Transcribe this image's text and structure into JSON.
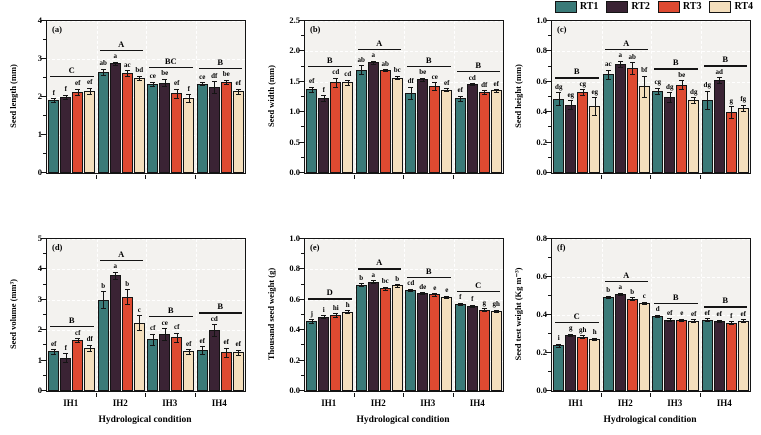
{
  "legend": {
    "items": [
      {
        "label": "RT1",
        "color": "#3A7A78"
      },
      {
        "label": "RT2",
        "color": "#3A2334"
      },
      {
        "label": "RT3",
        "color": "#DE4A31"
      },
      {
        "label": "RT4",
        "color": "#F4DFBD"
      }
    ]
  },
  "xlabel": "Hydrological condition",
  "categories": [
    "IH1",
    "IH2",
    "IH3",
    "IH4"
  ],
  "colors": {
    "bar_border": "#141414",
    "plot_background": "#f3f2ef",
    "gridline": "#ffffff"
  },
  "chart_data": {
    "type": "bar",
    "legend_position": "top-right",
    "grid": true,
    "panels": [
      {
        "panel_label": "(a)",
        "ylabel": "Seed length (mm)",
        "ylim": [
          0,
          4
        ],
        "yticks": [
          "0",
          "1",
          "2",
          "3",
          "4"
        ],
        "group_letters": [
          "C",
          "A",
          "BC",
          "B"
        ],
        "show_x_labels": false,
        "series": [
          {
            "name": "RT1",
            "values": [
              1.92,
              2.66,
              2.35,
              2.35
            ],
            "errors": [
              0.05,
              0.08,
              0.05,
              0.04
            ],
            "letters": [
              "f",
              "ab",
              "ce",
              "ce"
            ]
          },
          {
            "name": "RT2",
            "values": [
              2.01,
              2.89,
              2.38,
              2.26
            ],
            "errors": [
              0.05,
              0.04,
              0.1,
              0.15
            ],
            "letters": [
              "f",
              "a",
              "be",
              "df"
            ]
          },
          {
            "name": "RT3",
            "values": [
              2.14,
              2.63,
              2.1,
              2.4
            ],
            "errors": [
              0.08,
              0.07,
              0.12,
              0.06
            ],
            "letters": [
              "ef",
              "ac",
              "ef",
              "be"
            ]
          },
          {
            "name": "RT4",
            "values": [
              2.16,
              2.5,
              1.97,
              2.15
            ],
            "errors": [
              0.08,
              0.06,
              0.1,
              0.07
            ],
            "letters": [
              "ef",
              "bd",
              "f",
              "ef"
            ]
          }
        ]
      },
      {
        "panel_label": "(b)",
        "ylabel": "Seed width (mm)",
        "ylim": [
          0,
          2.5
        ],
        "yticks": [
          "0.0",
          "0.5",
          "1.0",
          "1.5",
          "2.0",
          "2.5"
        ],
        "group_letters": [
          "B",
          "A",
          "B",
          "B"
        ],
        "show_x_labels": false,
        "series": [
          {
            "name": "RT1",
            "values": [
              1.38,
              1.7,
              1.32,
              1.23
            ],
            "errors": [
              0.04,
              0.07,
              0.1,
              0.04
            ],
            "letters": [
              "ef",
              "ab",
              "df",
              "ef"
            ]
          },
          {
            "name": "RT2",
            "values": [
              1.23,
              1.82,
              1.54,
              1.46
            ],
            "errors": [
              0.05,
              0.03,
              0.03,
              0.02
            ],
            "letters": [
              "f",
              "a",
              "be",
              "cd"
            ]
          },
          {
            "name": "RT3",
            "values": [
              1.49,
              1.69,
              1.43,
              1.33
            ],
            "errors": [
              0.08,
              0.02,
              0.06,
              0.03
            ],
            "letters": [
              "cd",
              "ab",
              "ce",
              "df"
            ]
          },
          {
            "name": "RT4",
            "values": [
              1.49,
              1.57,
              1.37,
              1.36
            ],
            "errors": [
              0.04,
              0.03,
              0.02,
              0.02
            ],
            "letters": [
              "cd",
              "bc",
              "ef",
              "ef"
            ]
          }
        ]
      },
      {
        "panel_label": "(c)",
        "ylabel": "Seed height (mm)",
        "ylim": [
          0,
          1.0
        ],
        "yticks": [
          "0.0",
          "0.2",
          "0.4",
          "0.6",
          "0.8",
          "1.0"
        ],
        "group_letters": [
          "B",
          "A",
          "B",
          "B"
        ],
        "show_x_labels": false,
        "series": [
          {
            "name": "RT1",
            "values": [
              0.49,
              0.65,
              0.54,
              0.48
            ],
            "errors": [
              0.04,
              0.03,
              0.02,
              0.06
            ],
            "letters": [
              "dg",
              "ac",
              "cg",
              "dg"
            ]
          },
          {
            "name": "RT2",
            "values": [
              0.45,
              0.72,
              0.5,
              0.61
            ],
            "errors": [
              0.03,
              0.02,
              0.03,
              0.02
            ],
            "letters": [
              "eg",
              "a",
              "dg",
              "ad"
            ]
          },
          {
            "name": "RT3",
            "values": [
              0.53,
              0.69,
              0.58,
              0.4
            ],
            "errors": [
              0.02,
              0.04,
              0.03,
              0.04
            ],
            "letters": [
              "cg",
              "ab",
              "be",
              "g"
            ]
          },
          {
            "name": "RT4",
            "values": [
              0.44,
              0.57,
              0.48,
              0.43
            ],
            "errors": [
              0.06,
              0.07,
              0.02,
              0.02
            ],
            "letters": [
              "eg",
              "bf",
              "dg",
              "fg"
            ]
          }
        ]
      },
      {
        "panel_label": "(d)",
        "ylabel": "Seed volume (mm³)",
        "ylim": [
          0,
          5
        ],
        "yticks": [
          "0",
          "1",
          "2",
          "3",
          "4",
          "5"
        ],
        "group_letters": [
          "B",
          "A",
          "B",
          "B"
        ],
        "show_x_labels": true,
        "series": [
          {
            "name": "RT1",
            "values": [
              1.3,
              3.0,
              1.7,
              1.35
            ],
            "errors": [
              0.08,
              0.28,
              0.18,
              0.12
            ],
            "letters": [
              "ef",
              "b",
              "cf",
              "ef"
            ]
          },
          {
            "name": "RT2",
            "values": [
              1.1,
              3.8,
              1.87,
              2.0
            ],
            "errors": [
              0.15,
              0.12,
              0.2,
              0.2
            ],
            "letters": [
              "f",
              "a",
              "ce",
              "cd"
            ]
          },
          {
            "name": "RT3",
            "values": [
              1.68,
              3.1,
              1.76,
              1.28
            ],
            "errors": [
              0.06,
              0.25,
              0.15,
              0.15
            ],
            "letters": [
              "cf",
              "b",
              "cf",
              "ef"
            ]
          },
          {
            "name": "RT4",
            "values": [
              1.42,
              2.25,
              1.3,
              1.27
            ],
            "errors": [
              0.1,
              0.25,
              0.08,
              0.08
            ],
            "letters": [
              "df",
              "c",
              "ef",
              "ef"
            ]
          }
        ]
      },
      {
        "panel_label": "(e)",
        "ylabel": "Thousand seed weight (g)",
        "ylim": [
          0,
          1.0
        ],
        "yticks": [
          "0.0",
          "0.2",
          "0.4",
          "0.6",
          "0.8",
          "1.0"
        ],
        "group_letters": [
          "D",
          "A",
          "B",
          "C"
        ],
        "show_x_labels": true,
        "series": [
          {
            "name": "RT1",
            "values": [
              0.46,
              0.7,
              0.665,
              0.575
            ],
            "errors": [
              0.012,
              0.01,
              0.008,
              0.006
            ],
            "letters": [
              "j",
              "b",
              "cd",
              "f"
            ]
          },
          {
            "name": "RT2",
            "values": [
              0.49,
              0.72,
              0.645,
              0.56
            ],
            "errors": [
              0.01,
              0.008,
              0.006,
              0.006
            ],
            "letters": [
              "i",
              "a",
              "de",
              "f"
            ]
          },
          {
            "name": "RT3",
            "values": [
              0.5,
              0.675,
              0.635,
              0.535
            ],
            "errors": [
              0.012,
              0.012,
              0.008,
              0.008
            ],
            "letters": [
              "hi",
              "bc",
              "e",
              "g"
            ]
          },
          {
            "name": "RT4",
            "values": [
              0.52,
              0.695,
              0.62,
              0.525
            ],
            "errors": [
              0.01,
              0.008,
              0.008,
              0.008
            ],
            "letters": [
              "h",
              "b",
              "e",
              "gh"
            ]
          }
        ]
      },
      {
        "panel_label": "(f)",
        "ylabel": "Seed test weight (Kg m⁻³)",
        "ylim": [
          0,
          0.8
        ],
        "yticks": [
          "0.0",
          "0.2",
          "0.4",
          "0.6",
          "0.8"
        ],
        "group_letters": [
          "C",
          "A",
          "B",
          "B"
        ],
        "show_x_labels": true,
        "series": [
          {
            "name": "RT1",
            "values": [
              0.24,
              0.495,
              0.395,
              0.375
            ],
            "errors": [
              0.008,
              0.006,
              0.006,
              0.008
            ],
            "letters": [
              "i",
              "b",
              "d",
              "ef"
            ]
          },
          {
            "name": "RT2",
            "values": [
              0.295,
              0.51,
              0.375,
              0.37
            ],
            "errors": [
              0.006,
              0.006,
              0.008,
              0.006
            ],
            "letters": [
              "g",
              "a",
              "ef",
              "ef"
            ]
          },
          {
            "name": "RT3",
            "values": [
              0.285,
              0.485,
              0.375,
              0.36
            ],
            "errors": [
              0.008,
              0.008,
              0.006,
              0.006
            ],
            "letters": [
              "gh",
              "b",
              "e",
              "f"
            ]
          },
          {
            "name": "RT4",
            "values": [
              0.275,
              0.465,
              0.37,
              0.37
            ],
            "errors": [
              0.006,
              0.006,
              0.008,
              0.008
            ],
            "letters": [
              "h",
              "c",
              "ef",
              "ef"
            ]
          }
        ]
      }
    ]
  }
}
